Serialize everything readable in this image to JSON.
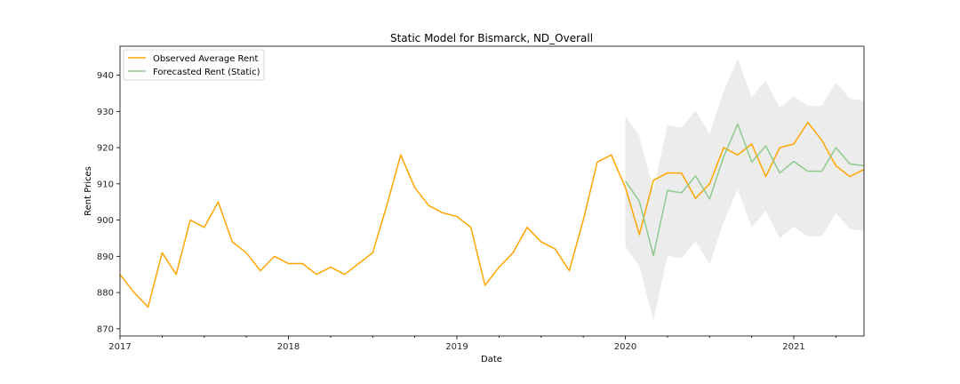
{
  "chart_data": {
    "type": "line",
    "title": "Static Model for Bismarck, ND_Overall",
    "xlabel": "Date",
    "ylabel": "Rent Prices",
    "xlim": [
      "2017-01",
      "2021-06"
    ],
    "ylim": [
      868,
      948
    ],
    "x_ticks": [
      "2017",
      "2018",
      "2019",
      "2020",
      "2021"
    ],
    "y_ticks": [
      870,
      880,
      890,
      900,
      910,
      920,
      930,
      940
    ],
    "grid": false,
    "legend_position": "top-left",
    "colors": {
      "observed": "#ffa500",
      "forecast": "#8fc98f",
      "band": "#ececec"
    },
    "series": [
      {
        "name": "Observed Average Rent",
        "x": [
          "2017-01",
          "2017-02",
          "2017-03",
          "2017-04",
          "2017-05",
          "2017-06",
          "2017-07",
          "2017-08",
          "2017-09",
          "2017-10",
          "2017-11",
          "2017-12",
          "2018-01",
          "2018-02",
          "2018-03",
          "2018-04",
          "2018-05",
          "2018-06",
          "2018-07",
          "2018-08",
          "2018-09",
          "2018-10",
          "2018-11",
          "2018-12",
          "2019-01",
          "2019-02",
          "2019-03",
          "2019-04",
          "2019-05",
          "2019-06",
          "2019-07",
          "2019-08",
          "2019-09",
          "2019-10",
          "2019-11",
          "2019-12",
          "2020-01",
          "2020-02",
          "2020-03",
          "2020-04",
          "2020-05",
          "2020-06",
          "2020-07",
          "2020-08",
          "2020-09",
          "2020-10",
          "2020-11",
          "2020-12",
          "2021-01",
          "2021-02",
          "2021-03",
          "2021-04",
          "2021-05",
          "2021-06"
        ],
        "values": [
          885,
          880,
          876,
          891,
          885,
          900,
          898,
          905,
          894,
          891,
          886,
          890,
          888,
          888,
          885,
          887,
          885,
          888,
          891,
          904,
          918,
          909,
          904,
          902,
          901,
          898,
          882,
          887,
          891,
          898,
          894,
          892,
          886,
          900,
          916,
          918,
          909,
          896,
          911,
          913,
          913,
          906,
          910,
          920,
          918,
          921,
          912,
          920,
          921,
          927,
          922,
          915,
          912,
          914
        ]
      },
      {
        "name": "Forecasted Rent (Static)",
        "x": [
          "2020-01",
          "2020-02",
          "2020-03",
          "2020-04",
          "2020-05",
          "2020-06",
          "2020-07",
          "2020-08",
          "2020-09",
          "2020-10",
          "2020-11",
          "2020-12",
          "2021-01",
          "2021-02",
          "2021-03",
          "2021-04",
          "2021-05",
          "2021-06"
        ],
        "values": [
          910.8,
          905.2,
          890.2,
          908.2,
          907.5,
          912.2,
          905.8,
          917.5,
          926.5,
          916,
          920.5,
          913,
          916.2,
          913.5,
          913.5,
          920,
          915.5,
          915
        ],
        "lower": [
          892.8,
          887.2,
          872.2,
          890.2,
          889.5,
          894.2,
          887.8,
          899.5,
          908.5,
          898,
          902.5,
          895,
          898.2,
          895.5,
          895.5,
          902,
          897.5,
          897
        ],
        "upper": [
          928.8,
          923.2,
          908.2,
          926.2,
          925.5,
          930.2,
          923.8,
          935.5,
          944.5,
          934,
          938.5,
          931,
          934.2,
          931.5,
          931.5,
          938,
          933.5,
          933
        ]
      }
    ]
  }
}
